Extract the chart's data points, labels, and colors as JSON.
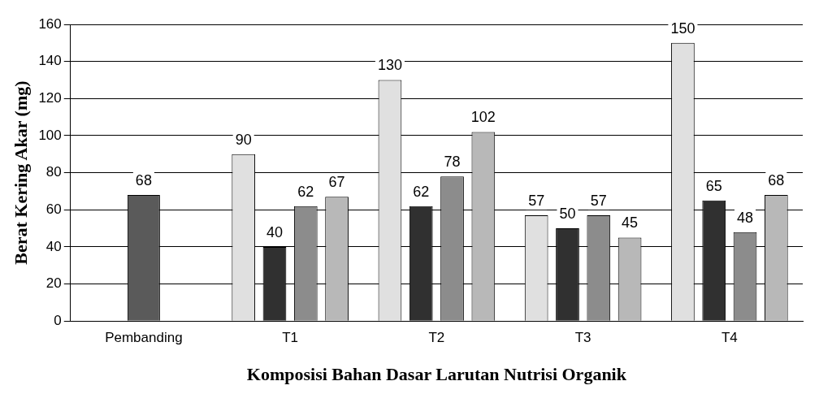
{
  "chart_data": {
    "type": "bar",
    "xlabel": "Komposisi Bahan Dasar Larutan Nutrisi Organik",
    "ylabel": "Berat Kering Akar (mg)",
    "categories": [
      "Pembanding",
      "T1",
      "T2",
      "T3",
      "T4"
    ],
    "series": [
      {
        "color": "#e0e0e0",
        "values": [
          null,
          90,
          130,
          57,
          150
        ]
      },
      {
        "color": "#303030",
        "values": [
          null,
          40,
          62,
          50,
          65
        ]
      },
      {
        "color": "#8c8c8c",
        "values": [
          null,
          62,
          78,
          57,
          48
        ]
      },
      {
        "color": "#b8b8b8",
        "values": [
          null,
          67,
          102,
          45,
          68
        ]
      },
      {
        "color": "#5a5a5a",
        "values": [
          68,
          null,
          null,
          null,
          null
        ]
      }
    ],
    "ylim": [
      0,
      160
    ],
    "yticks": [
      0,
      20,
      40,
      60,
      80,
      100,
      120,
      140,
      160
    ],
    "grid": "y",
    "legend": false,
    "data_labels": true
  }
}
